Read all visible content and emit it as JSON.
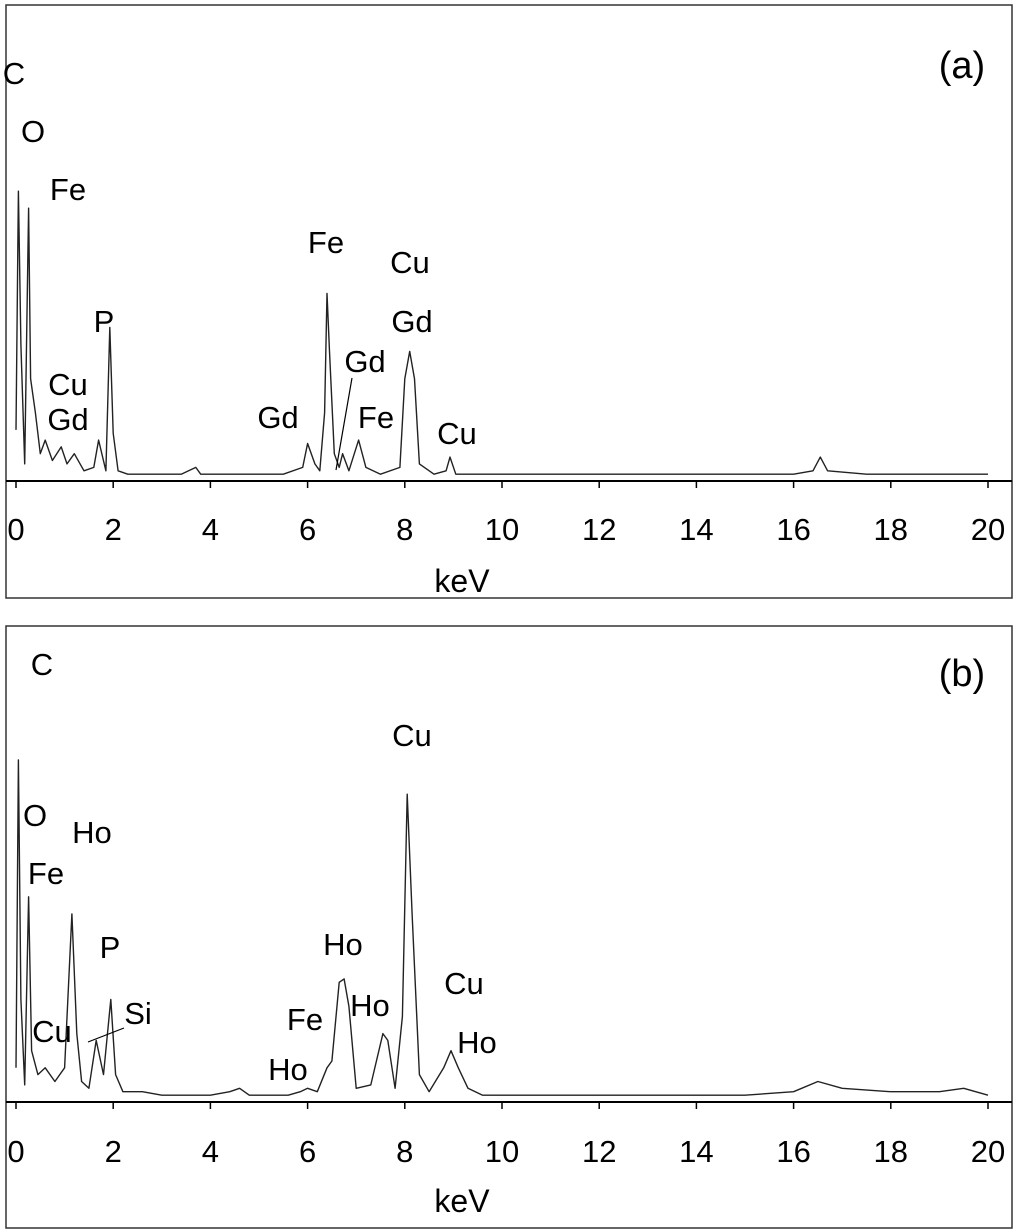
{
  "chart_data": [
    {
      "type": "line",
      "panel_label": "(a)",
      "xlabel": "keV",
      "ylabel": "",
      "xlim": [
        0,
        20
      ],
      "xticks": [
        0,
        2,
        4,
        6,
        8,
        10,
        12,
        14,
        16,
        18,
        20
      ],
      "grid": false,
      "series": [
        {
          "name": "",
          "x": [
            0.0,
            0.05,
            0.1,
            0.18,
            0.26,
            0.3,
            0.4,
            0.5,
            0.6,
            0.75,
            0.93,
            1.05,
            1.2,
            1.4,
            1.6,
            1.7,
            1.85,
            1.93,
            2.0,
            2.1,
            2.3,
            2.6,
            3.0,
            3.4,
            3.7,
            3.8,
            4.2,
            4.6,
            5.0,
            5.5,
            5.9,
            6.0,
            6.15,
            6.25,
            6.35,
            6.4,
            6.45,
            6.55,
            6.65,
            6.72,
            6.85,
            7.05,
            7.2,
            7.5,
            7.9,
            8.0,
            8.1,
            8.2,
            8.3,
            8.6,
            8.85,
            8.93,
            9.05,
            9.4,
            10.0,
            11.0,
            12.0,
            13.0,
            14.0,
            15.0,
            16.0,
            16.4,
            16.55,
            16.7,
            17.5,
            18.5,
            19.5,
            20.0
          ],
          "values": [
            15,
            85,
            40,
            5,
            80,
            30,
            20,
            8,
            12,
            6,
            10,
            5,
            8,
            3,
            4,
            12,
            3,
            45,
            14,
            3,
            2,
            2,
            2,
            2,
            4,
            2,
            2,
            2,
            2,
            2,
            4,
            11,
            5,
            3,
            20,
            55,
            38,
            8,
            4,
            8,
            3,
            12,
            4,
            2,
            4,
            30,
            38,
            30,
            5,
            2,
            3,
            7,
            2,
            2,
            2,
            2,
            2,
            2,
            2,
            2,
            2,
            3,
            7,
            3,
            2,
            2,
            2,
            2
          ]
        }
      ],
      "annotations": [
        {
          "text": "C",
          "x": 0.05
        },
        {
          "text": "O",
          "x": 0.26
        },
        {
          "text": "Fe",
          "x": 0.55
        },
        {
          "text": "P",
          "x": 1.93
        },
        {
          "text": "Cu",
          "x": 0.93
        },
        {
          "text": "Gd",
          "x": 1.1
        },
        {
          "text": "Fe",
          "x": 6.4
        },
        {
          "text": "Cu",
          "x": 8.1
        },
        {
          "text": "Gd",
          "x": 8.1
        },
        {
          "text": "Gd",
          "x": 6.72
        },
        {
          "text": "Gd",
          "x": 6.05
        },
        {
          "text": "Fe",
          "x": 7.05
        },
        {
          "text": "Cu",
          "x": 8.93
        }
      ]
    },
    {
      "type": "line",
      "panel_label": "(b)",
      "xlabel": "keV",
      "ylabel": "",
      "xlim": [
        0,
        20
      ],
      "xticks": [
        0,
        2,
        4,
        6,
        8,
        10,
        12,
        14,
        16,
        18,
        20
      ],
      "grid": false,
      "series": [
        {
          "name": "",
          "x": [
            0.0,
            0.05,
            0.1,
            0.18,
            0.26,
            0.32,
            0.45,
            0.6,
            0.8,
            1.0,
            1.15,
            1.25,
            1.35,
            1.5,
            1.65,
            1.8,
            1.95,
            2.05,
            2.2,
            2.6,
            3.0,
            3.5,
            4.0,
            4.4,
            4.6,
            4.8,
            5.2,
            5.6,
            5.85,
            6.0,
            6.2,
            6.4,
            6.5,
            6.65,
            6.75,
            6.85,
            7.0,
            7.3,
            7.55,
            7.65,
            7.8,
            7.95,
            8.05,
            8.15,
            8.3,
            8.5,
            8.8,
            8.95,
            9.1,
            9.3,
            9.6,
            10.0,
            11.0,
            12.0,
            13.0,
            14.0,
            15.0,
            16.0,
            16.5,
            17.0,
            18.0,
            19.0,
            19.5,
            20.0
          ],
          "values": [
            10,
            100,
            30,
            5,
            60,
            15,
            8,
            10,
            6,
            10,
            55,
            20,
            6,
            4,
            18,
            8,
            30,
            8,
            3,
            3,
            2,
            2,
            2,
            3,
            4,
            2,
            2,
            2,
            3,
            4,
            3,
            10,
            12,
            35,
            36,
            28,
            4,
            5,
            20,
            18,
            4,
            25,
            90,
            55,
            8,
            3,
            10,
            15,
            10,
            4,
            2,
            2,
            2,
            2,
            2,
            2,
            2,
            3,
            6,
            4,
            3,
            3,
            4,
            2
          ]
        }
      ],
      "annotations": [
        {
          "text": "C",
          "x": 0.05
        },
        {
          "text": "O",
          "x": 0.26
        },
        {
          "text": "Ho",
          "x": 1.15
        },
        {
          "text": "Fe",
          "x": 0.3
        },
        {
          "text": "P",
          "x": 1.95
        },
        {
          "text": "Si",
          "x": 1.65
        },
        {
          "text": "Cu",
          "x": 0.8
        },
        {
          "text": "Ho",
          "x": 6.7
        },
        {
          "text": "Fe",
          "x": 6.45
        },
        {
          "text": "Ho",
          "x": 7.55
        },
        {
          "text": "Ho",
          "x": 5.9
        },
        {
          "text": "Cu",
          "x": 8.05
        },
        {
          "text": "Cu",
          "x": 8.95
        },
        {
          "text": "Ho",
          "x": 8.95
        }
      ]
    }
  ]
}
